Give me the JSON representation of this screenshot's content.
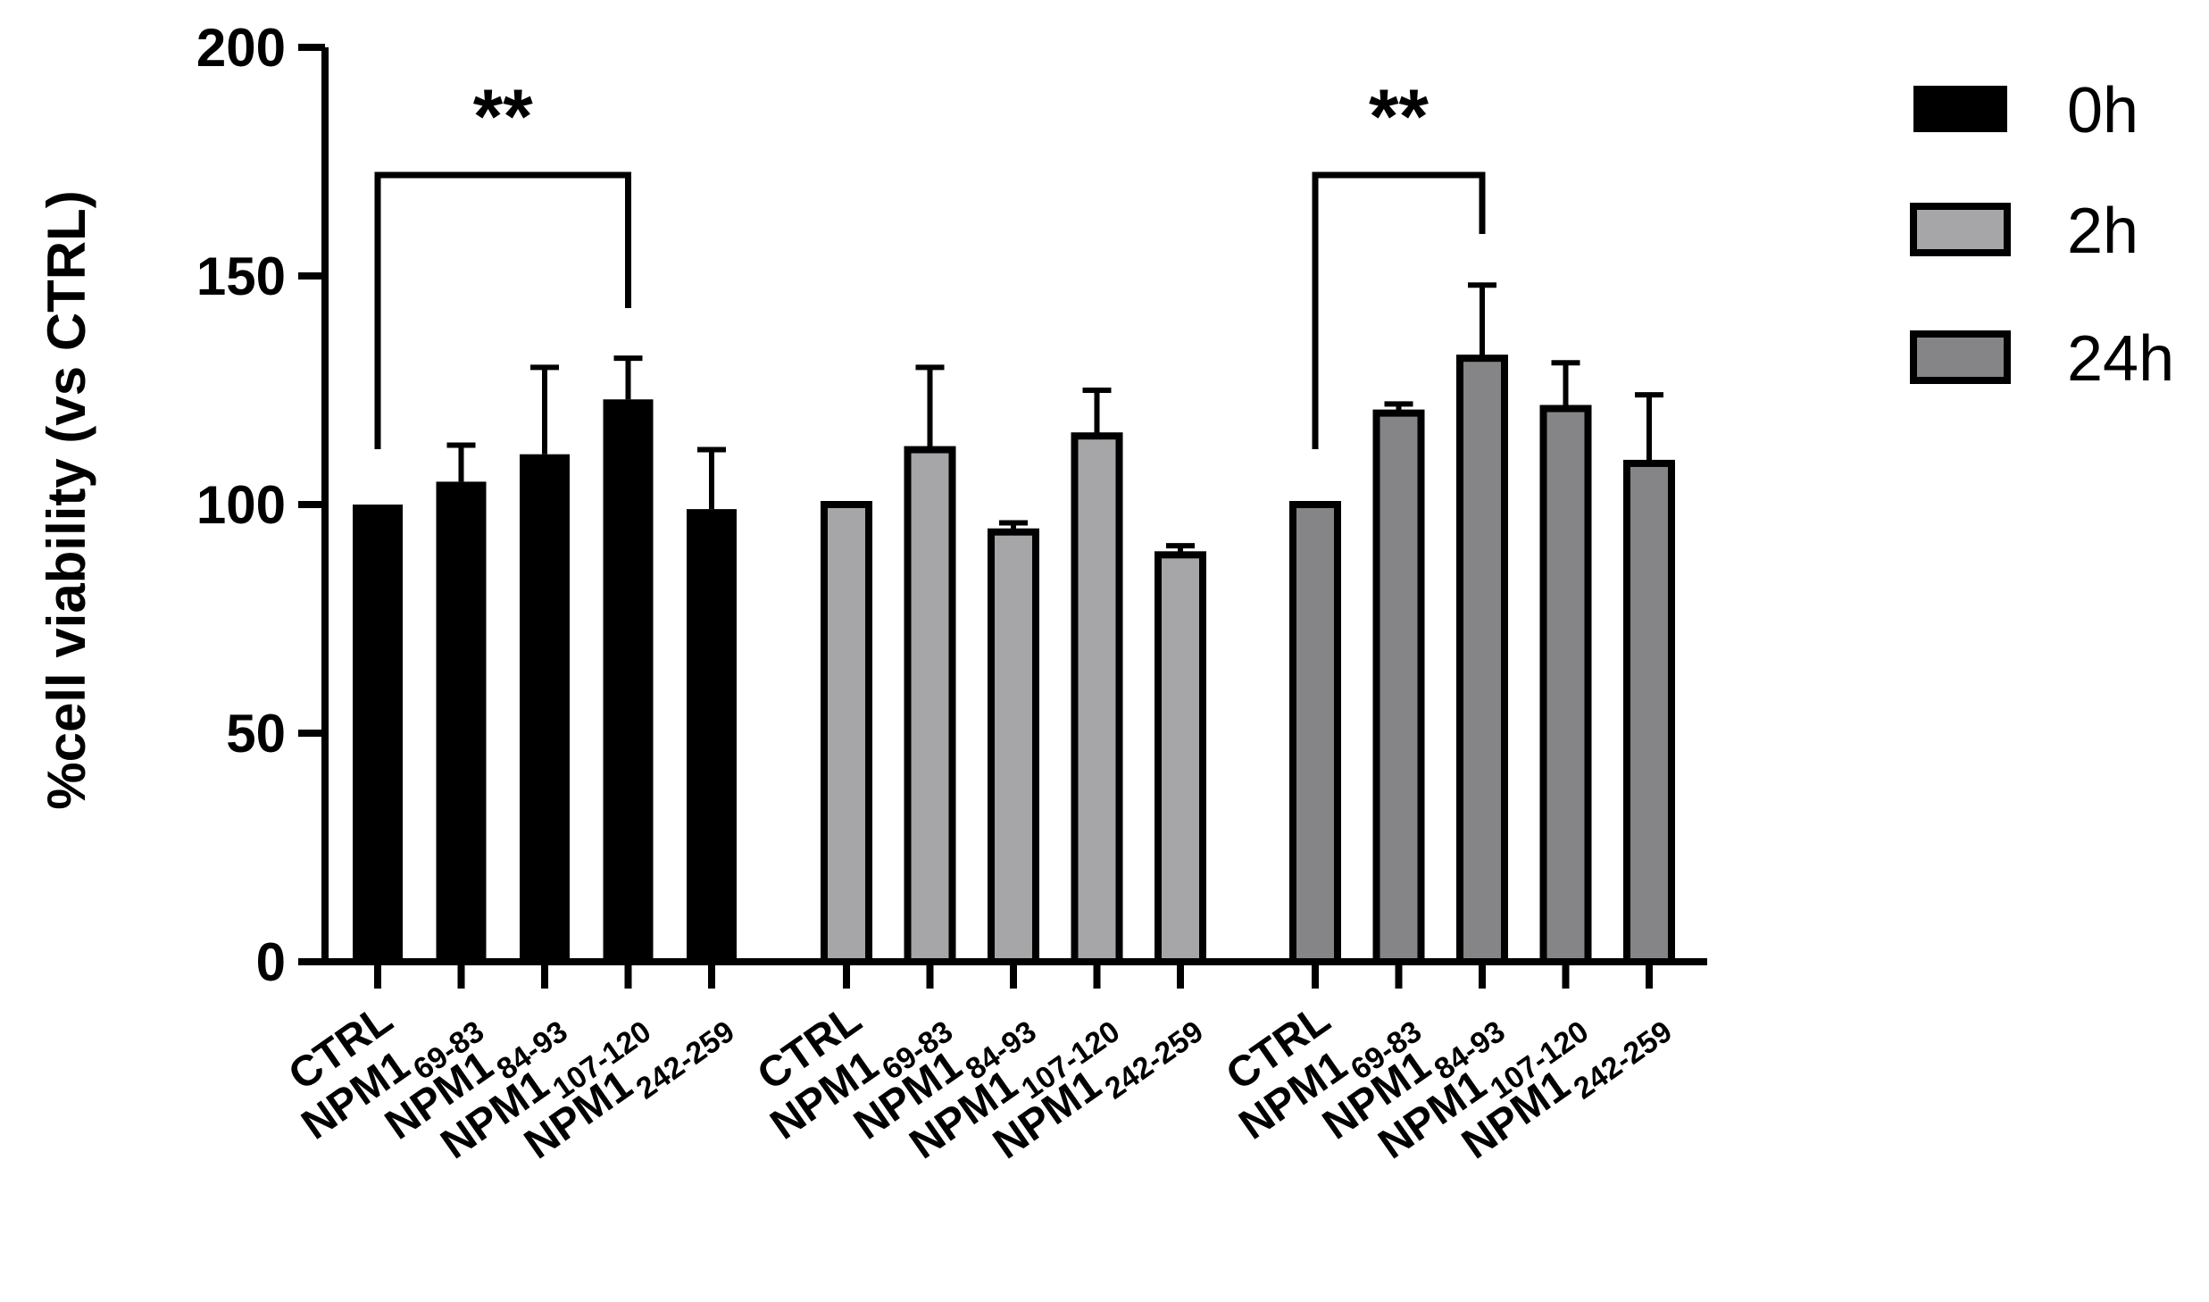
{
  "chart_data": {
    "type": "bar",
    "title": "",
    "xlabel": "",
    "ylabel": "%cell viability (vs CTRL)",
    "ylim": [
      0,
      200
    ],
    "yticks": [
      0,
      50,
      100,
      150,
      200
    ],
    "grid": false,
    "legend_position": "top-right",
    "categories": [
      {
        "base": "CTRL",
        "sub": ""
      },
      {
        "base": "NPM1",
        "sub": "69-83"
      },
      {
        "base": "NPM1",
        "sub": "84-93"
      },
      {
        "base": "NPM1",
        "sub": "107-120"
      },
      {
        "base": "NPM1",
        "sub": "242-259"
      }
    ],
    "series": [
      {
        "name": "0h",
        "color": "#000000",
        "values": [
          100,
          105,
          111,
          123,
          99
        ],
        "errors": [
          0,
          8,
          19,
          9,
          13
        ]
      },
      {
        "name": "2h",
        "color": "#a6a6a8",
        "values": [
          100,
          112,
          94,
          115,
          89
        ],
        "errors": [
          0,
          18,
          2,
          10,
          2
        ]
      },
      {
        "name": "24h",
        "color": "#858587",
        "values": [
          100,
          120,
          132,
          121,
          109
        ],
        "errors": [
          0,
          2,
          16,
          10,
          15
        ]
      }
    ],
    "annotations": [
      {
        "group": 0,
        "from": 0,
        "to": 3,
        "label": "**"
      },
      {
        "group": 2,
        "from": 0,
        "to": 2,
        "label": "**"
      }
    ]
  }
}
